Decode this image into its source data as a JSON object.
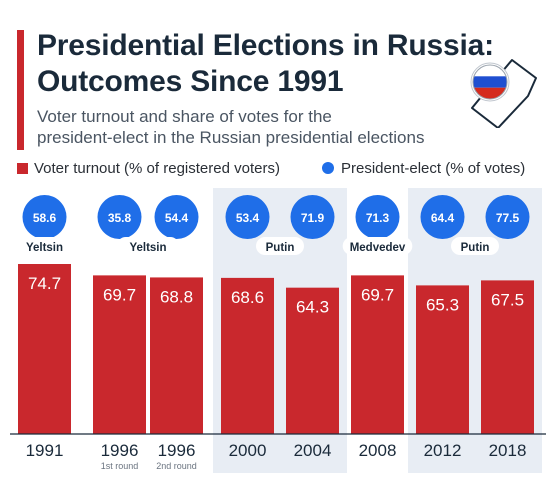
{
  "header": {
    "title_line1": "Presidential Elections in Russia:",
    "title_line2": "Outcomes Since 1991",
    "subtitle_line1": "Voter turnout and share of votes for the",
    "subtitle_line2": "president-elect in the Russian presidential elections"
  },
  "legend": {
    "turnout_label": "Voter turnout (% of registered voters)",
    "president_label": "President-elect (% of votes)"
  },
  "colors": {
    "bar": "#c9282d",
    "bubble": "#1f6ee8",
    "shade": "#e8edf4",
    "accent": "#c9282d"
  },
  "chart_data": {
    "type": "bar",
    "categories": [
      "1991",
      "1996",
      "1996",
      "2000",
      "2004",
      "2008",
      "2012",
      "2018"
    ],
    "round_labels": [
      "",
      "1st round",
      "2nd round",
      "",
      "",
      "",
      "",
      ""
    ],
    "presidents": [
      {
        "name": "Yeltsin",
        "bars": [
          0
        ]
      },
      {
        "name": "Yeltsin",
        "bars": [
          1,
          2
        ]
      },
      {
        "name": "Putin",
        "bars": [
          3,
          4
        ]
      },
      {
        "name": "Medvedev",
        "bars": [
          5
        ]
      },
      {
        "name": "Putin",
        "bars": [
          6,
          7
        ]
      }
    ],
    "series": [
      {
        "name": "Voter turnout (% of registered voters)",
        "values": [
          74.7,
          69.7,
          68.8,
          68.6,
          64.3,
          69.7,
          65.3,
          67.5
        ]
      },
      {
        "name": "President-elect (% of votes)",
        "values": [
          58.6,
          35.8,
          54.4,
          53.4,
          71.9,
          71.3,
          64.4,
          77.5
        ]
      }
    ],
    "shaded_groups": [
      [
        3,
        4
      ],
      [
        6,
        7
      ]
    ],
    "ylim": [
      0,
      75
    ]
  }
}
